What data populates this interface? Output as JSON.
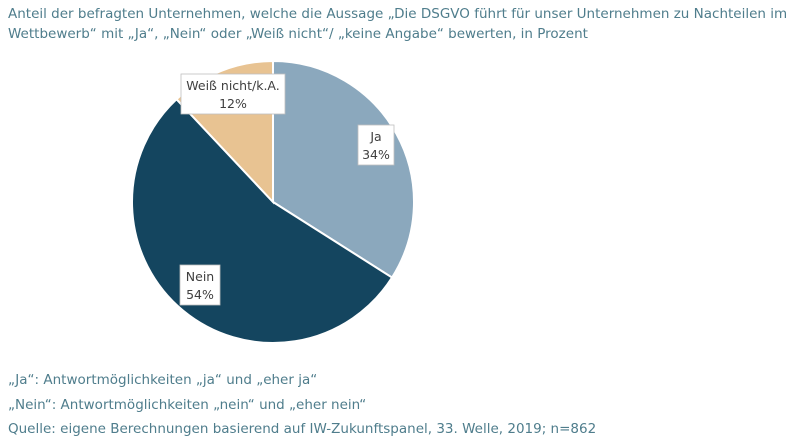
{
  "chart_data": {
    "type": "pie",
    "title": "Anteil der befragten Unternehmen, welche die Aussage „Die DSGVO führt für unser Unternehmen zu Nachteilen im Wettbewerb“ mit „Ja“, „Nein“ oder „Weiß nicht“/ „keine Angabe“ bewerten, in Prozent",
    "categories": [
      "Ja",
      "Nein",
      "Weiß nicht/k.A."
    ],
    "values": [
      34,
      54,
      12
    ],
    "value_labels": [
      "34%",
      "54%",
      "12%"
    ],
    "colors": [
      "#8ba8bd",
      "#14455f",
      "#e8c392"
    ],
    "start": "top, clockwise"
  },
  "notes": [
    "„Ja“: Antwortmöglichkeiten „ja“ und „eher ja“",
    "„Nein“: Antwortmöglichkeiten „nein“ und „eher nein“",
    "Quelle: eigene Berechnungen basierend auf IW-Zukunftspanel, 33. Welle, 2019; n=862"
  ]
}
